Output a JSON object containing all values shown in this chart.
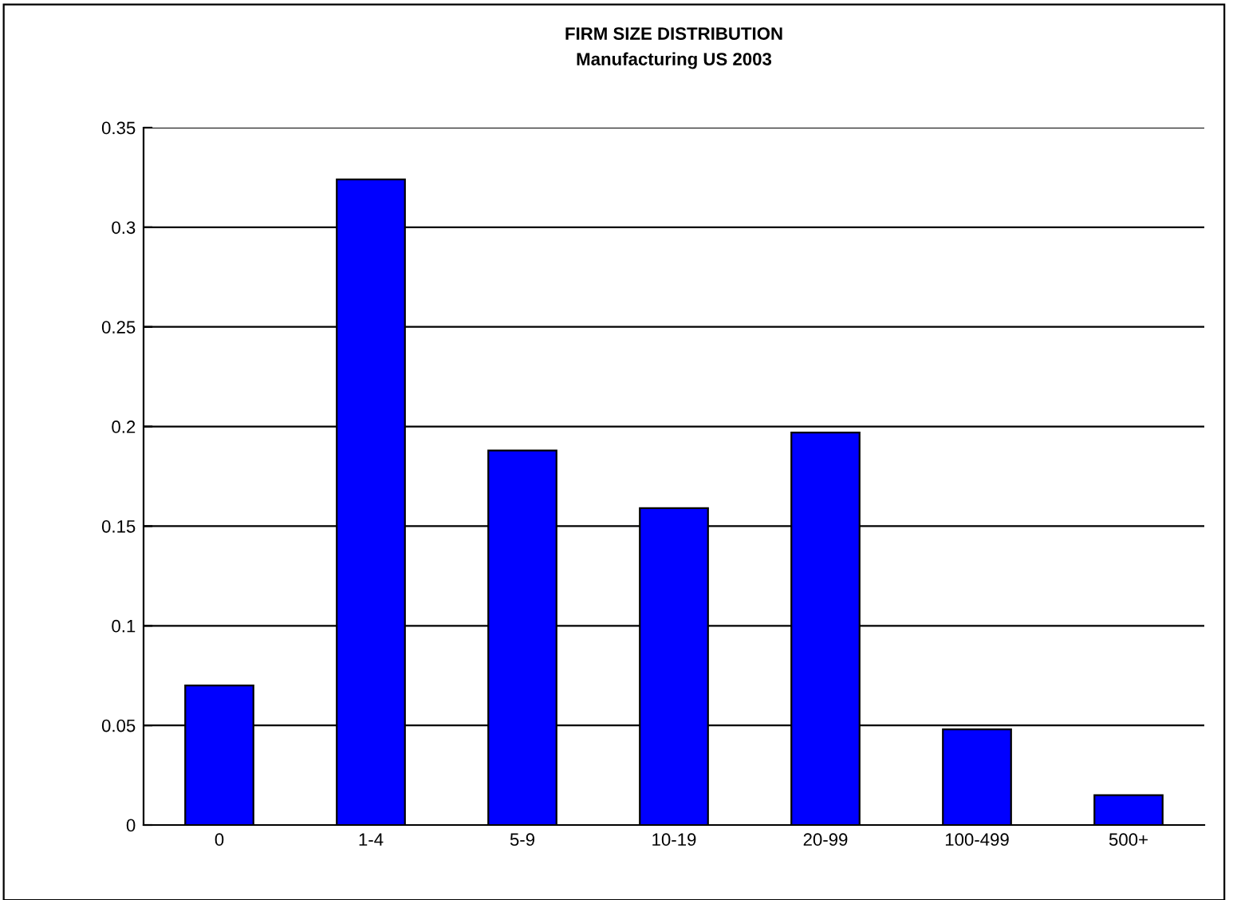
{
  "chart_data": {
    "type": "bar",
    "title": "FIRM SIZE DISTRIBUTION",
    "subtitle": "Manufacturing US 2003",
    "categories": [
      "0",
      "1-4",
      "5-9",
      "10-19",
      "20-99",
      "100-499",
      "500+"
    ],
    "values": [
      0.07,
      0.324,
      0.188,
      0.159,
      0.197,
      0.048,
      0.015
    ],
    "color": "#0000ff",
    "ylim": [
      0,
      0.35
    ],
    "yticks": [
      0,
      0.05,
      0.1,
      0.15,
      0.2,
      0.25,
      0.3,
      0.35
    ],
    "grid": "y",
    "legend": false
  }
}
